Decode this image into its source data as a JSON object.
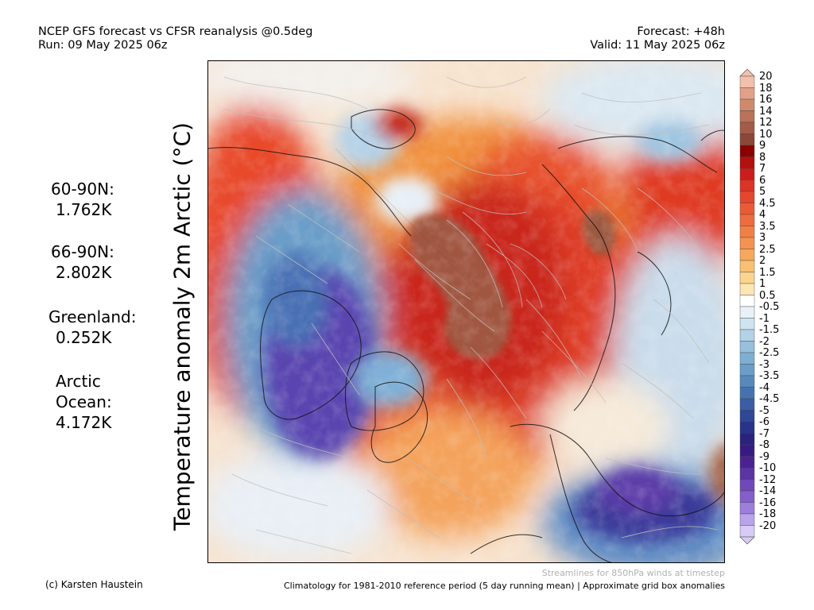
{
  "header": {
    "title_line1": "NCEP GFS forecast vs CFSR reanalysis @0.5deg",
    "title_line2": "Run: 09 May 2025 06z",
    "forecast": "Forecast: +48h",
    "valid": "Valid: 11 May 2025 06z"
  },
  "stats": {
    "lat60_label": "60-90N:",
    "lat60_value": "1.762K",
    "lat66_label": "66-90N:",
    "lat66_value": "2.802K",
    "greenland_label": "Greenland:",
    "greenland_value": "0.252K",
    "arctic_label_1": "Arctic",
    "arctic_label_2": "Ocean:",
    "arctic_value": "4.172K"
  },
  "y_axis_label": "Temperature anomaly 2m Arctic (°C)",
  "footer": {
    "credit": "(c) Karsten Haustein",
    "streamlines_note": "Streamlines for 850hPa winds at timestep",
    "climatology_note": "Climatology for 1981-2010 reference period (5 day running mean) | Approximate grid box anomalies"
  },
  "colorbar": {
    "labels": [
      "20",
      "18",
      "16",
      "14",
      "12",
      "10",
      "9",
      "8",
      "7",
      "6",
      "5",
      "4.5",
      "4",
      "3.5",
      "3",
      "2.5",
      "2",
      "1.5",
      "1",
      "0.5",
      "-0.5",
      "-1",
      "-1.5",
      "-2",
      "-2.5",
      "-3",
      "-3.5",
      "-4",
      "-4.5",
      "-5",
      "-6",
      "-7",
      "-8",
      "-9",
      "-10",
      "-12",
      "-14",
      "-16",
      "-18",
      "-20"
    ],
    "colors": [
      "#f2c0ac",
      "#e2a187",
      "#cf8a6c",
      "#b9715a",
      "#a25c48",
      "#8b4738",
      "#8b0000",
      "#b31010",
      "#cc1c1c",
      "#dd3324",
      "#e5462e",
      "#ea5a36",
      "#ee6c3d",
      "#f17f45",
      "#f4934f",
      "#f7a85c",
      "#f9c074",
      "#fbd48e",
      "#fde6b2",
      "#ffffff",
      "#e8f1f8",
      "#cfe3f0",
      "#b3d2e6",
      "#96c0dc",
      "#7dafd2",
      "#6a9ec9",
      "#5889bd",
      "#4673b0",
      "#3a5da3",
      "#2e4796",
      "#28338a",
      "#2a237e",
      "#381b82",
      "#4b2391",
      "#5c34a4",
      "#7048b8",
      "#845ecb",
      "#9d7edc",
      "#b9a3ea",
      "#d8cbf6"
    ]
  }
}
